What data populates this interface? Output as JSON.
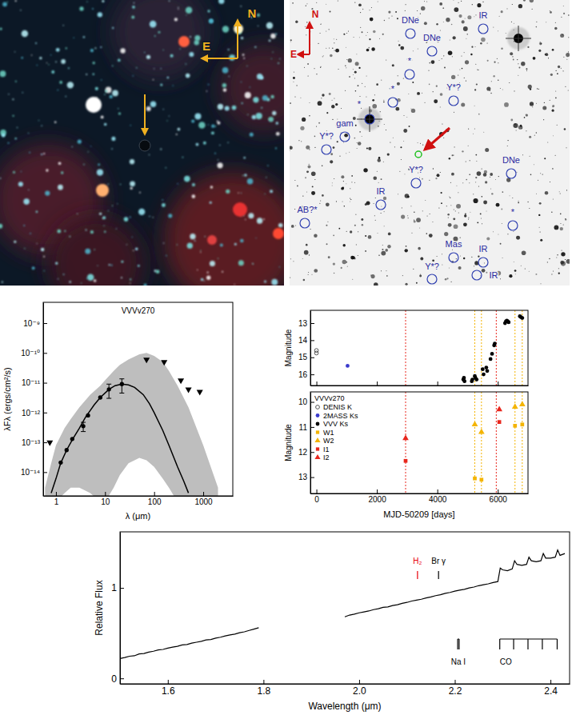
{
  "images": [
    {
      "north": "N",
      "east": "E"
    },
    {
      "north": "N",
      "east": "E",
      "labels": [
        "IR",
        "DNe",
        "DNe",
        "*",
        "*",
        "Y*?",
        "*",
        "gam",
        "Y*?",
        "Y*?",
        "DNe",
        "IR",
        "*",
        "AB?*",
        "Mas",
        "IR",
        "IR",
        "Y*?"
      ]
    }
  ],
  "chart_data": [
    {
      "type": "sed",
      "title": "VVVv270",
      "xlabel": "λ (μm)",
      "ylabel": "λFλ (ergs/cm²/s)",
      "log": true,
      "xlim": [
        0.55,
        4000
      ],
      "ylim": [
        1.6e-15,
        5e-09
      ],
      "xticks": [
        1,
        10,
        100,
        1000
      ],
      "yticks": [
        {
          "value": 1e-14,
          "label": "10⁻¹⁴"
        },
        {
          "value": 1e-13,
          "label": "10⁻¹³"
        },
        {
          "value": 1e-12,
          "label": "10⁻¹²"
        },
        {
          "value": 1e-11,
          "label": "10⁻¹¹"
        },
        {
          "value": 1e-10,
          "label": "10⁻¹⁰"
        },
        {
          "value": 1e-09,
          "label": "10⁻⁹"
        }
      ],
      "series": [
        {
          "type": "area",
          "color": "#bebebe",
          "x": [
            0.6,
            0.8,
            1,
            1.5,
            2,
            3,
            5,
            8,
            10,
            15,
            20,
            30,
            50,
            70,
            100,
            150,
            200,
            300,
            500,
            1000,
            2000
          ],
          "lower": [
            1e-15,
            1e-15,
            1e-15,
            2e-15,
            3e-15,
            3e-15,
            2e-15,
            1e-15,
            1e-15,
            3e-15,
            8e-15,
            2e-14,
            3e-14,
            2.5e-14,
            1.5e-14,
            6e-15,
            3e-15,
            1e-15,
            1e-15,
            1e-15,
            1e-15
          ],
          "upper": [
            3e-15,
            2e-14,
            8e-14,
            3e-13,
            6e-13,
            1.5e-12,
            4e-12,
            8e-12,
            1.2e-11,
            2.5e-11,
            4e-11,
            6e-11,
            9e-11,
            1e-10,
            8e-11,
            5e-11,
            2.5e-11,
            8e-12,
            1.5e-12,
            8e-14,
            3e-15
          ]
        },
        {
          "type": "line",
          "color": "#000000",
          "x": [
            0.8,
            1,
            1.25,
            1.65,
            2.2,
            3,
            4,
            6,
            8,
            12,
            16,
            22,
            30,
            40,
            60,
            80,
            100,
            150,
            200,
            300,
            400,
            500
          ],
          "values": [
            2e-15,
            6e-15,
            2e-14,
            5.5e-14,
            1.3e-13,
            3e-13,
            7e-13,
            1.8e-12,
            3.2e-12,
            6e-12,
            8e-12,
            9e-12,
            8.5e-12,
            7e-12,
            4e-12,
            2e-12,
            1e-12,
            2.5e-13,
            8e-14,
            1.5e-14,
            5e-15,
            2e-15
          ]
        },
        {
          "type": "scatter",
          "color": "#000000",
          "marker": "circle",
          "x": [
            1.25,
            1.65,
            2.15,
            3.6,
            4.5,
            8,
            12,
            22
          ],
          "values": [
            2.1e-14,
            5.5e-14,
            1.3e-13,
            3.5e-13,
            8e-13,
            3.2e-12,
            6e-12,
            9e-12
          ],
          "errors": [
            null,
            null,
            null,
            1.2e-13,
            null,
            null,
            3e-12,
            4.5e-12
          ]
        },
        {
          "type": "scatter",
          "color": "#000000",
          "marker": "triangle-down",
          "x": [
            0.75,
            70,
            160,
            350,
            500,
            850
          ],
          "values": [
            1e-13,
            6e-11,
            5e-11,
            1.2e-11,
            6e-12,
            5e-12
          ]
        }
      ]
    },
    {
      "type": "scatter",
      "title": "VVVv270",
      "xlabel": "MJD-50209 [days]",
      "xlim": [
        -200,
        7000
      ],
      "xticks": [
        0,
        2000,
        4000,
        6000
      ],
      "panels": [
        {
          "ylabel": "Magnitude",
          "ylim": [
            16.65,
            12.25
          ],
          "yticks": [
            13,
            14,
            15,
            16
          ],
          "tick_labels": "y"
        },
        {
          "ylabel": "Magnitude",
          "ylim": [
            13.65,
            9.6
          ],
          "yticks": [
            10,
            11,
            12,
            13
          ]
        }
      ],
      "legend": "upper left",
      "line_style": "dotted",
      "vlines": [
        {
          "x": 2950,
          "color": "#e8261c"
        },
        {
          "x": 5950,
          "color": "#e8261c"
        },
        {
          "x": 5240,
          "color": "#f4b400"
        },
        {
          "x": 5460,
          "color": "#f4b400"
        },
        {
          "x": 6570,
          "color": "#f4b400"
        },
        {
          "x": 6810,
          "color": "#f4b400"
        }
      ],
      "series": [
        {
          "name": "DENIS K",
          "color": "#555555",
          "marker": "circle-open",
          "panel": 0,
          "x": [
            0,
            0
          ],
          "values": [
            14.6,
            14.75
          ]
        },
        {
          "name": "2MASS Ks",
          "color": "#3a3acc",
          "marker": "circle",
          "panel": 0,
          "x": [
            1030
          ],
          "values": [
            15.5
          ]
        },
        {
          "name": "VVV Ks",
          "color": "#000000",
          "marker": "circle",
          "panel": 0,
          "x": [
            4860,
            4880,
            4900,
            5140,
            5160,
            5240,
            5260,
            5300,
            5500,
            5530,
            5620,
            5650,
            5760,
            5810,
            5880,
            5900,
            6240,
            6270,
            6300,
            6330,
            6360,
            6730,
            6770,
            6810
          ],
          "values": [
            16.3,
            16.2,
            16.4,
            16.4,
            16.3,
            16.1,
            16.2,
            16.3,
            15.7,
            16.0,
            15.6,
            15.8,
            15.1,
            14.8,
            14.3,
            14.2,
            13.0,
            12.9,
            12.85,
            12.9,
            12.95,
            12.6,
            12.65,
            12.7
          ]
        },
        {
          "name": "W1",
          "color": "#f4b400",
          "marker": "square",
          "panel": 1,
          "x": [
            5240,
            5460,
            6570,
            6810
          ],
          "values": [
            13.05,
            13.1,
            10.95,
            10.9
          ]
        },
        {
          "name": "W2",
          "color": "#f4b400",
          "marker": "triangle",
          "panel": 1,
          "x": [
            5240,
            5460,
            6570,
            6810
          ],
          "values": [
            10.9,
            11.2,
            10.2,
            10.1
          ]
        },
        {
          "name": "I1",
          "color": "#e8261c",
          "marker": "square",
          "panel": 1,
          "x": [
            2950,
            6050
          ],
          "values": [
            12.35,
            10.8
          ]
        },
        {
          "name": "I2",
          "color": "#e8261c",
          "marker": "triangle",
          "panel": 1,
          "x": [
            2950,
            6050
          ],
          "values": [
            11.45,
            10.3
          ]
        }
      ]
    },
    {
      "type": "line",
      "xlabel": "Wavelength (μm)",
      "ylabel": "Relative Flux",
      "color": "#000000",
      "xlim": [
        1.5,
        2.44
      ],
      "ylim": [
        -0.06,
        1.62
      ],
      "xticks": [
        1.6,
        1.8,
        {
          "value": 2.0,
          "label": "2.0"
        },
        2.2,
        2.4
      ],
      "yticks": [
        0,
        1
      ],
      "x": [
        1.5,
        1.51,
        1.52,
        1.53,
        1.54,
        1.55,
        1.56,
        1.57,
        1.58,
        1.59,
        1.6,
        1.61,
        1.62,
        1.63,
        1.64,
        1.65,
        1.66,
        1.67,
        1.68,
        1.69,
        1.7,
        1.71,
        1.72,
        1.73,
        1.74,
        1.75,
        1.76,
        1.77,
        1.78,
        1.79,
        1.88,
        1.97,
        1.98,
        1.99,
        2.0,
        2.01,
        2.02,
        2.03,
        2.04,
        2.05,
        2.06,
        2.07,
        2.08,
        2.09,
        2.1,
        2.11,
        2.12,
        2.13,
        2.14,
        2.15,
        2.16,
        2.17,
        2.18,
        2.19,
        2.2,
        2.21,
        2.22,
        2.23,
        2.24,
        2.25,
        2.26,
        2.27,
        2.28,
        2.29,
        2.295,
        2.3,
        2.31,
        2.32,
        2.325,
        2.33,
        2.34,
        2.35,
        2.355,
        2.36,
        2.37,
        2.38,
        2.385,
        2.39,
        2.4,
        2.41,
        2.415,
        2.42,
        2.43
      ],
      "values": [
        0.22,
        0.23,
        0.245,
        0.25,
        0.27,
        0.275,
        0.29,
        0.3,
        0.315,
        0.32,
        0.335,
        0.345,
        0.355,
        0.37,
        0.375,
        0.39,
        0.4,
        0.41,
        0.425,
        0.43,
        0.445,
        0.455,
        0.47,
        0.48,
        0.49,
        0.505,
        0.515,
        0.53,
        0.545,
        0.56,
        null,
        0.68,
        0.7,
        0.71,
        0.725,
        0.735,
        0.745,
        0.76,
        0.77,
        0.785,
        0.79,
        0.805,
        0.815,
        0.83,
        0.84,
        0.855,
        0.865,
        0.875,
        0.89,
        0.9,
        0.915,
        0.925,
        0.94,
        0.95,
        0.965,
        0.975,
        0.985,
        1.0,
        1.01,
        1.025,
        1.035,
        1.045,
        1.06,
        1.07,
        1.22,
        1.2,
        1.19,
        1.21,
        1.3,
        1.26,
        1.25,
        1.26,
        1.34,
        1.3,
        1.29,
        1.3,
        1.38,
        1.33,
        1.33,
        1.34,
        1.42,
        1.36,
        1.38
      ],
      "upper_lines": [
        {
          "label": "H₂",
          "x": [
            2.122
          ],
          "color": "#e8000b"
        },
        {
          "label": "Br γ",
          "x": [
            2.166
          ],
          "color": "#000000"
        }
      ],
      "lower_lines": [
        {
          "label": "Na I",
          "x": [
            2.206,
            2.209
          ],
          "color": "#000000"
        },
        {
          "label": "CO",
          "x": [
            2.294,
            2.323,
            2.353,
            2.383,
            2.414
          ],
          "color": "#000000"
        }
      ]
    }
  ]
}
